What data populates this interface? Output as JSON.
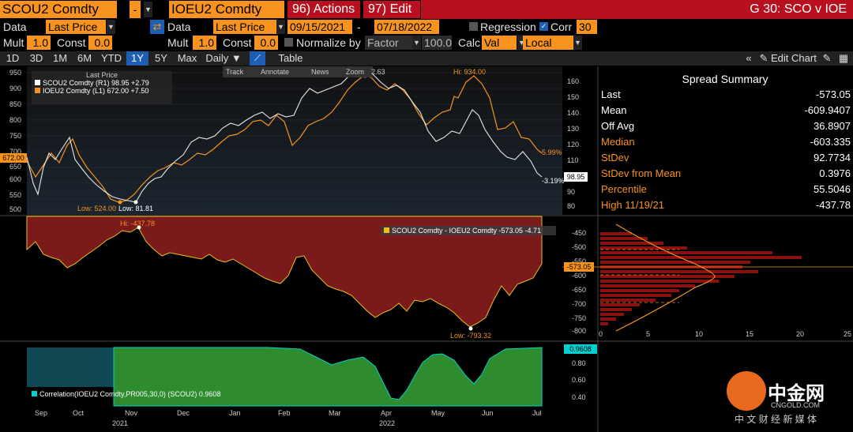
{
  "top": {
    "security1": "SCOU2 Comdty",
    "minus": "-",
    "security2": "IOEU2 Comdty",
    "actions": "96) Actions",
    "edit": "97) Edit",
    "title": "G 30: SCO v IOE"
  },
  "row2": {
    "data_label": "Data",
    "data_value": "Last Price",
    "data2_label": "Data",
    "data2_value": "Last Price",
    "start_date": "09/15/2021",
    "dash": "-",
    "end_date": "07/18/2022",
    "regression": "Regression",
    "corr": "Corr",
    "corr_value": "30"
  },
  "row3": {
    "mult_label": "Mult",
    "mult_value": "1.0",
    "const_label": "Const",
    "const_value": "0.0",
    "mult2_label": "Mult",
    "mult2_value": "1.0",
    "const2_label": "Const",
    "const2_value": "0.0",
    "normalize": "Normalize by",
    "factor": "Factor",
    "factor_value": "100.0",
    "calc_label": "Calc",
    "calc_value": "Val",
    "local": "Local"
  },
  "toolbar": {
    "periods": [
      "1D",
      "3D",
      "1M",
      "6M",
      "YTD",
      "1Y",
      "5Y",
      "Max"
    ],
    "selected": "1Y",
    "daily": "Daily ▼",
    "table": "Table",
    "edit_chart": "Edit Chart"
  },
  "chart_tools": {
    "track": "Track",
    "annotate": "Annotate",
    "news": "News",
    "zoom": "Zoom"
  },
  "legend": {
    "title": "Last Price",
    "series1": "SCOU2 Comdty  (R1)  98.95   +2.79",
    "series2": "IOEU2 Comdty  (L1)  672.00  +7.50"
  },
  "price_panel": {
    "left_ticks": [
      "950",
      "900",
      "850",
      "800",
      "750",
      "700",
      "650",
      "600",
      "550",
      "500"
    ],
    "right_ticks": [
      "160",
      "150",
      "140",
      "130",
      "120",
      "110",
      "100",
      "90",
      "80"
    ],
    "left_current": "672.00",
    "right_current": "98.95",
    "hi_label": "Hi: 934.00",
    "low1_label": "Low: 524.00",
    "low2_label": "Low: 81.81",
    "pct_orange": "5.99%",
    "pct_white": "-3.19%",
    "near_label": "2.63"
  },
  "spread_panel": {
    "legend": "SCOU2 Comdty - IOEU2 Comdty  -573.05  -4.71",
    "hi_label": "Hi: -437.78",
    "low_label": "Low: -793.32",
    "ticks": [
      "-450",
      "-500",
      "-550",
      "-600",
      "-650",
      "-700",
      "-750",
      "-800"
    ],
    "current": "-573.05"
  },
  "hist_panel": {
    "xticks": [
      "0",
      "5",
      "10",
      "15",
      "20",
      "25"
    ]
  },
  "corr_panel": {
    "legend": "Correlation(IOEU2 Comdty,PR005,30,0) (SCOU2) 0.9608",
    "ticks": [
      "0.80",
      "0.60",
      "0.40"
    ],
    "current": "0.9608"
  },
  "x_axis": {
    "months": [
      "Sep",
      "Oct",
      "Nov",
      "Dec",
      "Jan",
      "Feb",
      "Mar",
      "Apr",
      "May",
      "Jun",
      "Jul"
    ],
    "years": [
      "2021",
      "2022"
    ]
  },
  "summary": {
    "title": "Spread Summary",
    "rows": [
      {
        "k": "Last",
        "v": "-573.05",
        "c": "#ffffff"
      },
      {
        "k": "Mean",
        "v": "-609.9407",
        "c": "#ffffff"
      },
      {
        "k": "Off Avg",
        "v": "36.8907",
        "c": "#ffffff"
      },
      {
        "k": "Median",
        "v": "-603.335",
        "c": "#f7931e"
      },
      {
        "k": "StDev",
        "v": "92.7734",
        "c": "#f7931e"
      },
      {
        "k": "StDev from Mean",
        "v": "0.3976",
        "c": "#f7931e"
      },
      {
        "k": "Percentile",
        "v": "55.5046",
        "c": "#f7931e"
      },
      {
        "k": "High 11/19/21",
        "v": "-437.78",
        "c": "#f7931e"
      }
    ]
  },
  "watermark": {
    "brand": "中金网",
    "domain": "CNGOLD.COM",
    "tagline": "中 文 财 经 新 媒 体"
  },
  "colors": {
    "orange": "#f7931e",
    "red": "#b8101e",
    "spread_fill": "#7a1a1a",
    "corr_fill": "#2e8b2e",
    "corr_line": "#00d0d0",
    "blue_sel": "#1c5fb4"
  }
}
